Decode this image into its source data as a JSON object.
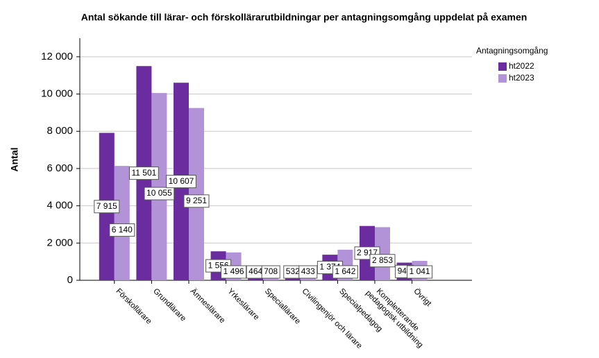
{
  "chart_data": {
    "type": "bar",
    "title": "Antal sökande till lärar- och förskollärarutbildningar per antagningsomgång uppdelat på examen",
    "y_label": "Antal",
    "legend_title": "Antagningsomgång",
    "legend": "top-right",
    "grid": true,
    "categories": [
      "Förskollärare",
      "Grundlärare",
      "Ämneslärare",
      "Yrkeslärare",
      "Speciallärare",
      "Civilingenjör och lärare",
      "Specialpedagog",
      "Kompletterande\npedagogisk utbildning",
      "Övrigt"
    ],
    "series": [
      {
        "name": "ht2022",
        "color": "#6a2c9f",
        "values": [
          7915,
          11501,
          10607,
          1556,
          464,
          532,
          1374,
          2917,
          948
        ],
        "value_labels": [
          "7 915",
          "11 501",
          "10 607",
          "1 556",
          "464",
          "532",
          "1 374",
          "2 917",
          "948"
        ]
      },
      {
        "name": "ht2023",
        "color": "#b293d8",
        "values": [
          6140,
          10055,
          9251,
          1496,
          708,
          433,
          1642,
          2853,
          1041
        ],
        "value_labels": [
          "6 140",
          "10 055",
          "9 251",
          "1 496",
          "708",
          "433",
          "1 642",
          "2 853",
          "1 041"
        ]
      }
    ],
    "ylim": [
      0,
      13000
    ],
    "yticks": [
      0,
      {
        "value": 2000,
        "label": "2 000"
      },
      {
        "value": 4000,
        "label": "4 000"
      },
      {
        "value": 6000,
        "label": "6 000"
      },
      {
        "value": 8000,
        "label": "8 000"
      },
      {
        "value": 10000,
        "label": "10 000"
      },
      {
        "value": 12000,
        "label": "12 000"
      }
    ]
  }
}
